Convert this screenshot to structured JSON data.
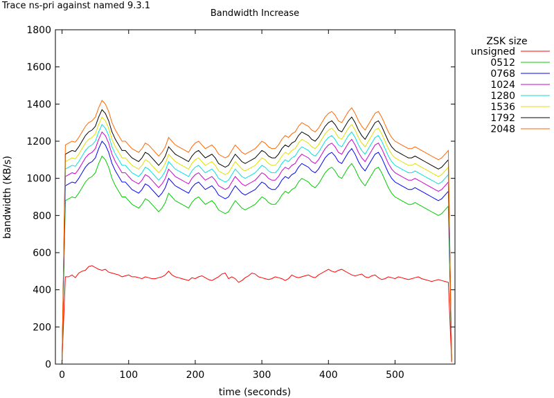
{
  "page_label": "Trace ns-pri against named 9.3.1",
  "chart_data": {
    "type": "line",
    "title": "Bandwidth Increase",
    "xlabel": "time (seconds)",
    "ylabel": "bandwidth (KB/s)",
    "xlim": [
      -10,
      590
    ],
    "ylim": [
      0,
      1800
    ],
    "x_ticks": [
      0,
      100,
      200,
      300,
      400,
      500
    ],
    "y_ticks": [
      0,
      200,
      400,
      600,
      800,
      1000,
      1200,
      1400,
      1600,
      1800
    ],
    "legend_title": "ZSK size",
    "legend_position": "outside-right",
    "grid": false,
    "x": [
      0,
      5,
      10,
      15,
      20,
      25,
      30,
      35,
      40,
      45,
      50,
      55,
      60,
      65,
      70,
      75,
      80,
      85,
      90,
      95,
      100,
      105,
      110,
      115,
      120,
      125,
      130,
      135,
      140,
      145,
      150,
      155,
      160,
      165,
      170,
      175,
      180,
      185,
      190,
      195,
      200,
      205,
      210,
      215,
      220,
      225,
      230,
      235,
      240,
      245,
      250,
      255,
      260,
      265,
      270,
      275,
      280,
      285,
      290,
      295,
      300,
      305,
      310,
      315,
      320,
      325,
      330,
      335,
      340,
      345,
      350,
      355,
      360,
      365,
      370,
      375,
      380,
      385,
      390,
      395,
      400,
      405,
      410,
      415,
      420,
      425,
      430,
      435,
      440,
      445,
      450,
      455,
      460,
      465,
      470,
      475,
      480,
      485,
      490,
      495,
      500,
      505,
      510,
      515,
      520,
      525,
      530,
      535,
      540,
      545,
      550,
      555,
      560,
      565,
      570,
      575,
      580,
      585
    ],
    "series": [
      {
        "name": "unsigned",
        "color": "#ff0000",
        "values": [
          20,
          470,
          470,
          480,
          465,
          490,
          500,
          505,
          525,
          530,
          520,
          510,
          505,
          510,
          495,
          490,
          485,
          480,
          470,
          475,
          480,
          470,
          470,
          465,
          460,
          470,
          465,
          460,
          460,
          465,
          470,
          480,
          500,
          480,
          470,
          465,
          460,
          455,
          450,
          465,
          460,
          470,
          475,
          465,
          455,
          450,
          460,
          470,
          485,
          490,
          460,
          470,
          460,
          440,
          450,
          465,
          475,
          490,
          485,
          470,
          465,
          460,
          455,
          460,
          470,
          465,
          460,
          450,
          460,
          480,
          470,
          465,
          470,
          475,
          480,
          470,
          465,
          480,
          490,
          500,
          510,
          500,
          495,
          505,
          510,
          500,
          490,
          480,
          475,
          480,
          485,
          470,
          465,
          475,
          480,
          465,
          455,
          460,
          470,
          465,
          460,
          470,
          465,
          460,
          455,
          460,
          465,
          470,
          460,
          455,
          450,
          445,
          450,
          455,
          450,
          445,
          440,
          10
        ]
      },
      {
        "name": "0512",
        "color": "#00cc00",
        "values": [
          20,
          880,
          890,
          900,
          895,
          920,
          950,
          980,
          1000,
          1010,
          1030,
          1080,
          1120,
          1100,
          1060,
          1000,
          960,
          930,
          900,
          900,
          880,
          860,
          850,
          840,
          860,
          890,
          880,
          860,
          840,
          820,
          840,
          870,
          920,
          900,
          880,
          870,
          860,
          850,
          840,
          870,
          890,
          900,
          880,
          860,
          870,
          880,
          860,
          830,
          820,
          810,
          820,
          850,
          880,
          860,
          840,
          830,
          840,
          850,
          860,
          880,
          900,
          890,
          870,
          860,
          860,
          880,
          910,
          930,
          920,
          940,
          950,
          980,
          1000,
          990,
          980,
          960,
          950,
          970,
          1000,
          1030,
          1050,
          1060,
          1040,
          1010,
          1000,
          1030,
          1060,
          1080,
          1050,
          1010,
          980,
          960,
          990,
          1020,
          1050,
          1060,
          1030,
          990,
          950,
          920,
          900,
          890,
          880,
          870,
          860,
          860,
          870,
          860,
          850,
          840,
          830,
          820,
          810,
          800,
          810,
          830,
          850,
          20
        ]
      },
      {
        "name": "0768",
        "color": "#0000ff",
        "values": [
          20,
          960,
          970,
          980,
          975,
          1000,
          1030,
          1060,
          1080,
          1090,
          1110,
          1160,
          1200,
          1180,
          1140,
          1080,
          1040,
          1010,
          980,
          980,
          960,
          940,
          930,
          920,
          940,
          970,
          960,
          940,
          920,
          900,
          920,
          950,
          1000,
          980,
          960,
          950,
          940,
          930,
          920,
          950,
          970,
          980,
          960,
          940,
          950,
          960,
          940,
          910,
          900,
          890,
          900,
          930,
          960,
          940,
          920,
          910,
          920,
          930,
          940,
          960,
          980,
          970,
          950,
          940,
          940,
          960,
          990,
          1010,
          1000,
          1020,
          1030,
          1060,
          1080,
          1070,
          1060,
          1040,
          1030,
          1050,
          1080,
          1110,
          1130,
          1140,
          1120,
          1090,
          1080,
          1110,
          1140,
          1160,
          1130,
          1090,
          1060,
          1040,
          1070,
          1100,
          1130,
          1140,
          1110,
          1070,
          1030,
          1000,
          980,
          970,
          960,
          950,
          940,
          940,
          950,
          940,
          930,
          920,
          910,
          900,
          890,
          880,
          890,
          910,
          930,
          20
        ]
      },
      {
        "name": "1024",
        "color": "#cc00cc",
        "values": [
          20,
          1010,
          1020,
          1030,
          1025,
          1050,
          1080,
          1110,
          1130,
          1140,
          1160,
          1210,
          1250,
          1230,
          1190,
          1130,
          1090,
          1060,
          1030,
          1030,
          1010,
          990,
          980,
          970,
          990,
          1020,
          1010,
          990,
          970,
          950,
          970,
          1000,
          1050,
          1030,
          1010,
          1000,
          990,
          980,
          970,
          1000,
          1020,
          1030,
          1010,
          990,
          1000,
          1010,
          990,
          960,
          950,
          940,
          950,
          980,
          1010,
          990,
          970,
          960,
          970,
          980,
          990,
          1010,
          1030,
          1020,
          1000,
          990,
          990,
          1010,
          1040,
          1060,
          1050,
          1070,
          1080,
          1110,
          1130,
          1120,
          1110,
          1090,
          1080,
          1100,
          1130,
          1160,
          1180,
          1190,
          1170,
          1140,
          1130,
          1160,
          1190,
          1210,
          1180,
          1140,
          1110,
          1090,
          1120,
          1150,
          1180,
          1190,
          1160,
          1120,
          1080,
          1050,
          1030,
          1020,
          1010,
          1000,
          990,
          990,
          1000,
          990,
          980,
          970,
          960,
          950,
          940,
          930,
          940,
          960,
          980,
          20
        ]
      },
      {
        "name": "1280",
        "color": "#00e0e0",
        "values": [
          20,
          1050,
          1060,
          1070,
          1065,
          1090,
          1120,
          1150,
          1170,
          1180,
          1200,
          1250,
          1290,
          1270,
          1230,
          1170,
          1130,
          1100,
          1070,
          1070,
          1050,
          1030,
          1020,
          1010,
          1030,
          1060,
          1050,
          1030,
          1010,
          990,
          1010,
          1040,
          1090,
          1070,
          1050,
          1040,
          1030,
          1020,
          1010,
          1040,
          1060,
          1070,
          1050,
          1030,
          1040,
          1050,
          1030,
          1000,
          990,
          980,
          990,
          1020,
          1050,
          1030,
          1010,
          1000,
          1010,
          1020,
          1030,
          1050,
          1070,
          1060,
          1040,
          1030,
          1030,
          1050,
          1080,
          1100,
          1090,
          1110,
          1120,
          1150,
          1170,
          1160,
          1150,
          1130,
          1120,
          1140,
          1170,
          1200,
          1220,
          1230,
          1210,
          1180,
          1170,
          1200,
          1230,
          1250,
          1220,
          1180,
          1150,
          1130,
          1160,
          1190,
          1220,
          1230,
          1200,
          1160,
          1120,
          1090,
          1070,
          1060,
          1050,
          1040,
          1030,
          1030,
          1040,
          1030,
          1020,
          1010,
          1000,
          990,
          980,
          970,
          980,
          1000,
          1020,
          20
        ]
      },
      {
        "name": "1536",
        "color": "#e0e000",
        "values": [
          20,
          1090,
          1100,
          1110,
          1105,
          1130,
          1160,
          1190,
          1210,
          1220,
          1240,
          1290,
          1330,
          1310,
          1270,
          1210,
          1170,
          1140,
          1110,
          1110,
          1090,
          1070,
          1060,
          1050,
          1070,
          1100,
          1090,
          1070,
          1050,
          1030,
          1050,
          1080,
          1130,
          1110,
          1090,
          1080,
          1070,
          1060,
          1050,
          1080,
          1100,
          1110,
          1090,
          1070,
          1080,
          1090,
          1070,
          1040,
          1030,
          1020,
          1030,
          1060,
          1090,
          1070,
          1050,
          1040,
          1050,
          1060,
          1070,
          1090,
          1110,
          1100,
          1080,
          1070,
          1070,
          1090,
          1120,
          1140,
          1130,
          1150,
          1160,
          1190,
          1210,
          1200,
          1190,
          1170,
          1160,
          1180,
          1210,
          1240,
          1260,
          1270,
          1250,
          1220,
          1210,
          1240,
          1270,
          1290,
          1260,
          1220,
          1190,
          1170,
          1200,
          1230,
          1260,
          1270,
          1240,
          1200,
          1160,
          1130,
          1110,
          1100,
          1090,
          1080,
          1070,
          1070,
          1080,
          1070,
          1060,
          1050,
          1040,
          1030,
          1020,
          1010,
          1020,
          1040,
          1060,
          20
        ]
      },
      {
        "name": "1792",
        "color": "#000000",
        "values": [
          20,
          1130,
          1140,
          1150,
          1145,
          1170,
          1200,
          1230,
          1250,
          1260,
          1280,
          1330,
          1370,
          1350,
          1310,
          1250,
          1210,
          1180,
          1150,
          1150,
          1130,
          1110,
          1100,
          1090,
          1110,
          1140,
          1130,
          1110,
          1090,
          1070,
          1090,
          1120,
          1170,
          1150,
          1130,
          1120,
          1110,
          1100,
          1090,
          1120,
          1140,
          1150,
          1130,
          1110,
          1120,
          1130,
          1110,
          1080,
          1070,
          1060,
          1070,
          1100,
          1130,
          1110,
          1090,
          1080,
          1090,
          1100,
          1110,
          1130,
          1150,
          1140,
          1120,
          1110,
          1110,
          1130,
          1160,
          1180,
          1170,
          1190,
          1200,
          1230,
          1250,
          1240,
          1230,
          1210,
          1200,
          1220,
          1250,
          1280,
          1300,
          1310,
          1290,
          1260,
          1250,
          1280,
          1310,
          1330,
          1300,
          1260,
          1230,
          1210,
          1240,
          1270,
          1300,
          1310,
          1280,
          1240,
          1200,
          1170,
          1150,
          1140,
          1130,
          1120,
          1110,
          1110,
          1120,
          1110,
          1100,
          1090,
          1080,
          1070,
          1060,
          1050,
          1060,
          1080,
          1100,
          20
        ]
      },
      {
        "name": "2048",
        "color": "#ff6600",
        "values": [
          20,
          1180,
          1190,
          1200,
          1195,
          1220,
          1250,
          1280,
          1300,
          1310,
          1330,
          1380,
          1420,
          1400,
          1360,
          1300,
          1260,
          1230,
          1200,
          1200,
          1180,
          1160,
          1150,
          1140,
          1160,
          1190,
          1180,
          1160,
          1140,
          1120,
          1140,
          1170,
          1220,
          1200,
          1180,
          1170,
          1160,
          1150,
          1140,
          1170,
          1190,
          1200,
          1180,
          1160,
          1170,
          1180,
          1160,
          1130,
          1120,
          1110,
          1120,
          1150,
          1180,
          1160,
          1140,
          1130,
          1140,
          1150,
          1160,
          1180,
          1200,
          1190,
          1170,
          1160,
          1160,
          1180,
          1210,
          1230,
          1220,
          1240,
          1250,
          1280,
          1300,
          1290,
          1280,
          1260,
          1250,
          1270,
          1300,
          1330,
          1350,
          1360,
          1340,
          1310,
          1300,
          1330,
          1360,
          1380,
          1350,
          1310,
          1280,
          1260,
          1290,
          1320,
          1350,
          1360,
          1330,
          1290,
          1250,
          1220,
          1200,
          1190,
          1180,
          1170,
          1160,
          1160,
          1170,
          1160,
          1150,
          1140,
          1130,
          1120,
          1110,
          1100,
          1110,
          1130,
          1150,
          20
        ]
      }
    ]
  }
}
